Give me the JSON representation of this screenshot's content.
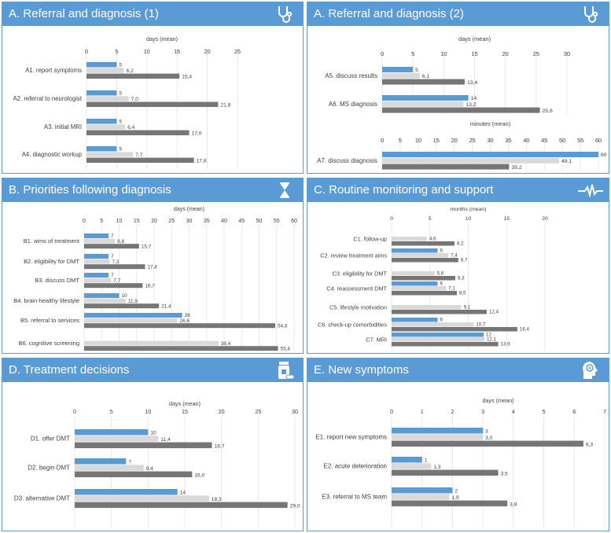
{
  "colors": {
    "header": "#5b9bd5",
    "series_blue": "#5b9bd5",
    "series_light": "#d9d9d9",
    "series_dark": "#767676"
  },
  "panels": [
    {
      "id": "A1",
      "title": "A. Referral and diagnosis (1)",
      "icon": "stethoscope-icon"
    },
    {
      "id": "A2",
      "title": "A. Referral and diagnosis (2)",
      "icon": "stethoscope-icon"
    },
    {
      "id": "B",
      "title": "B. Priorities following diagnosis",
      "icon": "hourglass-icon"
    },
    {
      "id": "C",
      "title": "C. Routine monitoring and support",
      "icon": "heartbeat-icon"
    },
    {
      "id": "D",
      "title": "D. Treatment decisions",
      "icon": "medication-icon"
    },
    {
      "id": "E",
      "title": "E. New symptoms",
      "icon": "brain-head-icon"
    }
  ],
  "chart_data": [
    {
      "id": "A1",
      "type": "bar",
      "orientation": "horizontal",
      "title": "A. Referral and diagnosis (1)",
      "xlabel": "days (mean)",
      "xlim": [
        0,
        25
      ],
      "ticks": [
        0,
        5,
        10,
        15,
        20,
        25
      ],
      "categories": [
        "A1.  report symptoms",
        "A2. referral to neurologist",
        "A3. initial MRI",
        "A4. diagnostic workup"
      ],
      "series": [
        {
          "name": "blue",
          "values": [
            5,
            5,
            5,
            5
          ],
          "labels": [
            "5",
            "5",
            "5",
            "5"
          ]
        },
        {
          "name": "light",
          "values": [
            6.2,
            7.0,
            6.4,
            7.7
          ],
          "labels": [
            "6,2",
            "7,0",
            "6,4",
            "7,7"
          ]
        },
        {
          "name": "dark",
          "values": [
            15.4,
            21.8,
            17.0,
            17.8
          ],
          "labels": [
            "15,4",
            "21,8",
            "17,0",
            "17,8"
          ]
        }
      ]
    },
    {
      "id": "A2-days",
      "type": "bar",
      "orientation": "horizontal",
      "title": "A. Referral and diagnosis (2)",
      "xlabel": "days (mean)",
      "xlim": [
        0,
        30
      ],
      "ticks": [
        0,
        5,
        10,
        15,
        20,
        25,
        30
      ],
      "categories": [
        "A5. discuss results",
        "A6. MS diagnosis"
      ],
      "series": [
        {
          "name": "blue",
          "values": [
            5,
            14
          ],
          "labels": [
            "5",
            "14"
          ]
        },
        {
          "name": "light",
          "values": [
            6.1,
            13.2
          ],
          "labels": [
            "6,1",
            "13,2"
          ]
        },
        {
          "name": "dark",
          "values": [
            13.4,
            25.6
          ],
          "labels": [
            "13,4",
            "25,6"
          ]
        }
      ]
    },
    {
      "id": "A2-minutes",
      "type": "bar",
      "orientation": "horizontal",
      "xlabel": "minutes (mean)",
      "xlim": [
        0,
        60
      ],
      "ticks": [
        0,
        5,
        10,
        15,
        20,
        25,
        30,
        35,
        40,
        45,
        50,
        55,
        60
      ],
      "categories": [
        "A7. discuss diagnosis"
      ],
      "series": [
        {
          "name": "blue",
          "values": [
            60
          ],
          "labels": [
            "60"
          ]
        },
        {
          "name": "light",
          "values": [
            49.1
          ],
          "labels": [
            "49,1"
          ]
        },
        {
          "name": "dark",
          "values": [
            35.2
          ],
          "labels": [
            "35,2"
          ]
        }
      ]
    },
    {
      "id": "B",
      "type": "bar",
      "orientation": "horizontal",
      "title": "B. Priorities following diagnosis",
      "xlabel": "days (mean)",
      "xlim": [
        0,
        60
      ],
      "ticks": [
        0,
        5,
        10,
        15,
        20,
        25,
        30,
        35,
        40,
        45,
        50,
        55,
        60
      ],
      "categories": [
        "B1. aims of treatment",
        "B2. eligibility for DMT",
        "B3. discuss DMT",
        "B4. brain-healthy lifestyle",
        "B5. referral to services",
        "B6. cognitive screening"
      ],
      "series": [
        {
          "name": "blue",
          "values": [
            7,
            7,
            7,
            10,
            28,
            null
          ],
          "labels": [
            "7",
            "7",
            "7",
            "10",
            "28",
            ""
          ]
        },
        {
          "name": "light",
          "values": [
            8.8,
            7.3,
            7.7,
            11.9,
            26.6,
            38.4
          ],
          "labels": [
            "8,8",
            "7,3",
            "7,7",
            "11,9",
            "26,6",
            "38,4"
          ]
        },
        {
          "name": "dark",
          "values": [
            15.7,
            17.4,
            16.7,
            21.4,
            54.6,
            55.4
          ],
          "labels": [
            "15,7",
            "17,4",
            "16,7",
            "21,4",
            "54,6",
            "55,4"
          ]
        }
      ]
    },
    {
      "id": "C",
      "type": "bar",
      "orientation": "horizontal",
      "title": "C. Routine monitoring and support",
      "xlabel": "months (mean)",
      "xlim": [
        0,
        20
      ],
      "ticks": [
        0,
        5,
        10,
        15,
        20
      ],
      "categories": [
        "C1. follow-up",
        "C2. review treatment aims",
        "C3. eligibility for DMT",
        "C4. reassessment DMT",
        "C5. lifestyle motivation",
        "C6. check-up comorbidities",
        "C7. MRI"
      ],
      "series": [
        {
          "name": "blue",
          "values": [
            null,
            6,
            null,
            6,
            null,
            6,
            12
          ],
          "labels": [
            "",
            "6",
            "",
            "6",
            "",
            "6",
            "12"
          ]
        },
        {
          "name": "light",
          "values": [
            4.6,
            7.4,
            5.6,
            7.1,
            9.1,
            10.7,
            12.1
          ],
          "labels": [
            "4,6",
            "7,4",
            "5,6",
            "7,1",
            "9,1",
            "10,7",
            "12,1"
          ]
        },
        {
          "name": "dark",
          "values": [
            8.2,
            8.7,
            8.3,
            8.5,
            12.4,
            16.4,
            13.9
          ],
          "labels": [
            "8,2",
            "8,7",
            "8,3",
            "8,5",
            "12,4",
            "16,4",
            "13,9"
          ]
        }
      ]
    },
    {
      "id": "D",
      "type": "bar",
      "orientation": "horizontal",
      "title": "D. Treatment decisions",
      "xlabel": "days (mean)",
      "xlim": [
        0,
        30
      ],
      "ticks": [
        0,
        5,
        10,
        15,
        20,
        25,
        30
      ],
      "categories": [
        "D1. offer DMT",
        "D2. begin DMT",
        "D3. alternative DMT"
      ],
      "series": [
        {
          "name": "blue",
          "values": [
            10,
            7,
            14
          ],
          "labels": [
            "10",
            "7",
            "14"
          ]
        },
        {
          "name": "light",
          "values": [
            11.4,
            9.4,
            18.3
          ],
          "labels": [
            "11,4",
            "9,4",
            "18,3"
          ]
        },
        {
          "name": "dark",
          "values": [
            18.7,
            16.0,
            29.0
          ],
          "labels": [
            "18,7",
            "16,0",
            "29,0"
          ]
        }
      ]
    },
    {
      "id": "E",
      "type": "bar",
      "orientation": "horizontal",
      "title": "E. New symptoms",
      "xlabel": "days (mean)",
      "xlim": [
        0,
        7
      ],
      "ticks": [
        0,
        1,
        2,
        3,
        4,
        5,
        6,
        7
      ],
      "categories": [
        "E1. report new symptoms",
        "E2. acute deterioration",
        "E3. referral to MS team"
      ],
      "series": [
        {
          "name": "blue",
          "values": [
            3,
            1,
            2
          ],
          "labels": [
            "3",
            "1",
            "2"
          ]
        },
        {
          "name": "light",
          "values": [
            3.0,
            1.3,
            1.9
          ],
          "labels": [
            "3,0",
            "1,3",
            "1,9"
          ]
        },
        {
          "name": "dark",
          "values": [
            6.3,
            3.5,
            3.8
          ],
          "labels": [
            "6,3",
            "3,5",
            "3,8"
          ]
        }
      ]
    }
  ]
}
